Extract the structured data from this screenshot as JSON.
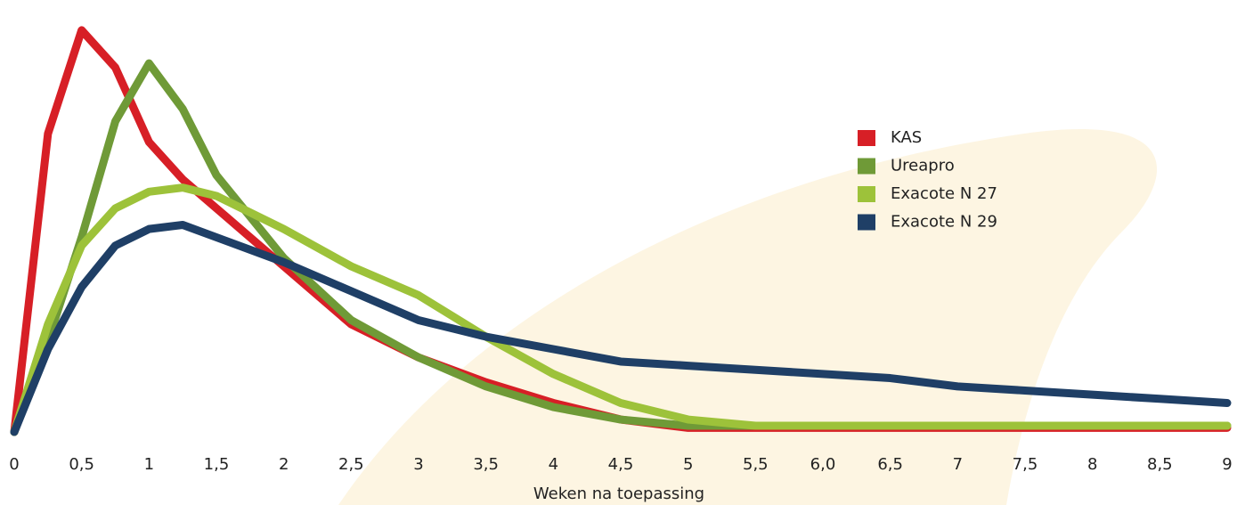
{
  "chart_data": {
    "type": "line",
    "x_label": "Weken na toepassing",
    "x": [
      0,
      0.25,
      0.5,
      0.75,
      1,
      1.25,
      1.5,
      2,
      2.5,
      3,
      3.5,
      4,
      4.5,
      5,
      5.5,
      6,
      6.5,
      7,
      7.5,
      8,
      8.5,
      9
    ],
    "series": [
      {
        "name": "KAS",
        "color": "#d71f26",
        "values": [
          0,
          72,
          97,
          88,
          70,
          61,
          54,
          40,
          26,
          18,
          12,
          7,
          3,
          1,
          1,
          1,
          1,
          1,
          1,
          1,
          1,
          1
        ]
      },
      {
        "name": "Ureapro",
        "color": "#6f9a37",
        "values": [
          0,
          22,
          47,
          75,
          89,
          78,
          62,
          42,
          27,
          18,
          11,
          6,
          3,
          1.5,
          1.5,
          1.5,
          1.5,
          1.5,
          1.5,
          1.5,
          1.5,
          1.5
        ]
      },
      {
        "name": "Exacote N 27",
        "color": "#9dc23a",
        "values": [
          0,
          26,
          45,
          54,
          58,
          59,
          57,
          49,
          40,
          33,
          23,
          14,
          7,
          3,
          1.5,
          1.5,
          1.5,
          1.5,
          1.5,
          1.5,
          1.5,
          1.5
        ]
      },
      {
        "name": "Exacote N 29",
        "color": "#1f3f66",
        "values": [
          0,
          20,
          35,
          45,
          49,
          50,
          47,
          41,
          34,
          27,
          23,
          20,
          17,
          16,
          15,
          14,
          13,
          11,
          10,
          9,
          8,
          7
        ]
      }
    ],
    "xlim": [
      0,
      9
    ],
    "ylim": [
      0,
      100
    ],
    "xticks": [
      0,
      {
        "value": 0.5,
        "label": "0,5"
      },
      1,
      {
        "value": 1.5,
        "label": "1,5"
      },
      2,
      {
        "value": 2.5,
        "label": "2,5"
      },
      3,
      {
        "value": 3.5,
        "label": "3,5"
      },
      4,
      {
        "value": 4.5,
        "label": "4,5"
      },
      5,
      {
        "value": 5.5,
        "label": "5,5"
      },
      {
        "value": 6,
        "label": "6,0"
      },
      {
        "value": 6.5,
        "label": "6,5"
      },
      7,
      {
        "value": 7.5,
        "label": "7,5"
      },
      8,
      {
        "value": 8.5,
        "label": "8,5"
      },
      9
    ]
  }
}
